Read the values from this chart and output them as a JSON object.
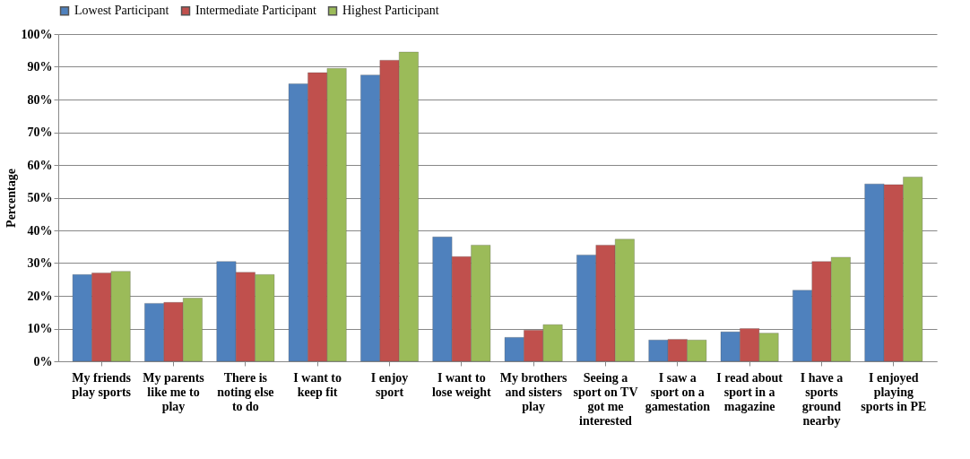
{
  "chart_data": {
    "type": "bar",
    "ylabel": "Percentage",
    "categories": [
      "My friends play sports",
      "My parents like me to play",
      "There is noting else to do",
      "I want to keep fit",
      "I enjoy sport",
      "I want to lose weight",
      "My brothers and sisters play",
      "Seeing a sport on TV got me interested",
      "I saw a sport on a gamestation",
      "I read about sport in a magazine",
      "I have a sports ground nearby",
      "I enjoyed playing sports in PE"
    ],
    "series": [
      {
        "name": "Lowest Participant",
        "color": "#4f81bd",
        "values": [
          26.5,
          17.7,
          30.5,
          84.8,
          87.5,
          38,
          7.3,
          32.5,
          6.5,
          9,
          21.7,
          54.2
        ]
      },
      {
        "name": "Intermediate Participant",
        "color": "#c0504d",
        "values": [
          27,
          18,
          27.2,
          88.2,
          92,
          32,
          9.5,
          35.5,
          6.7,
          10,
          30.5,
          54
        ]
      },
      {
        "name": "Highest Participant",
        "color": "#9bbb59",
        "values": [
          27.5,
          19.3,
          26.5,
          89.5,
          94.5,
          35.5,
          11.2,
          37.3,
          6.5,
          8.6,
          31.8,
          56.3
        ]
      }
    ],
    "ylim": [
      0,
      100
    ],
    "yticks": [
      {
        "value": 0,
        "label": "0%"
      },
      {
        "value": 10,
        "label": "10%"
      },
      {
        "value": 20,
        "label": "20%"
      },
      {
        "value": 30,
        "label": "30%"
      },
      {
        "value": 40,
        "label": "40%"
      },
      {
        "value": 50,
        "label": "50%"
      },
      {
        "value": 60,
        "label": "60%"
      },
      {
        "value": 70,
        "label": "70%"
      },
      {
        "value": 80,
        "label": "80%"
      },
      {
        "value": 90,
        "label": "90%"
      },
      {
        "value": 100,
        "label": "100%"
      }
    ],
    "grid": "y",
    "legend": "top"
  }
}
